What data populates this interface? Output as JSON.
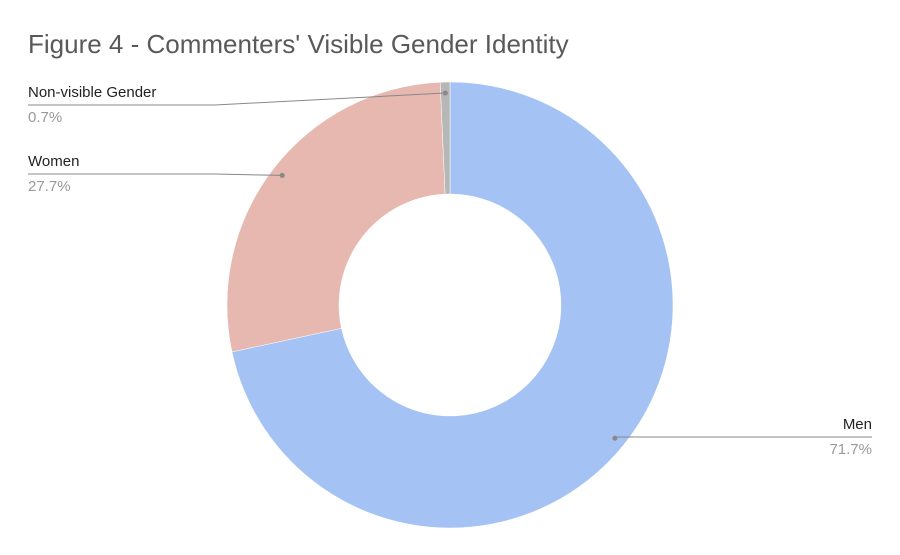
{
  "chart_data": {
    "type": "pie",
    "donut": true,
    "title": "Figure 4 - Commenters' Visible Gender Identity",
    "categories": [
      "Men",
      "Women",
      "Non-visible Gender"
    ],
    "values": [
      71.7,
      27.7,
      0.7
    ],
    "value_labels": [
      "71.7%",
      "27.7%",
      "0.7%"
    ],
    "colors": [
      "#a4c2f4",
      "#e6b8af",
      "#b7b7b7"
    ]
  }
}
